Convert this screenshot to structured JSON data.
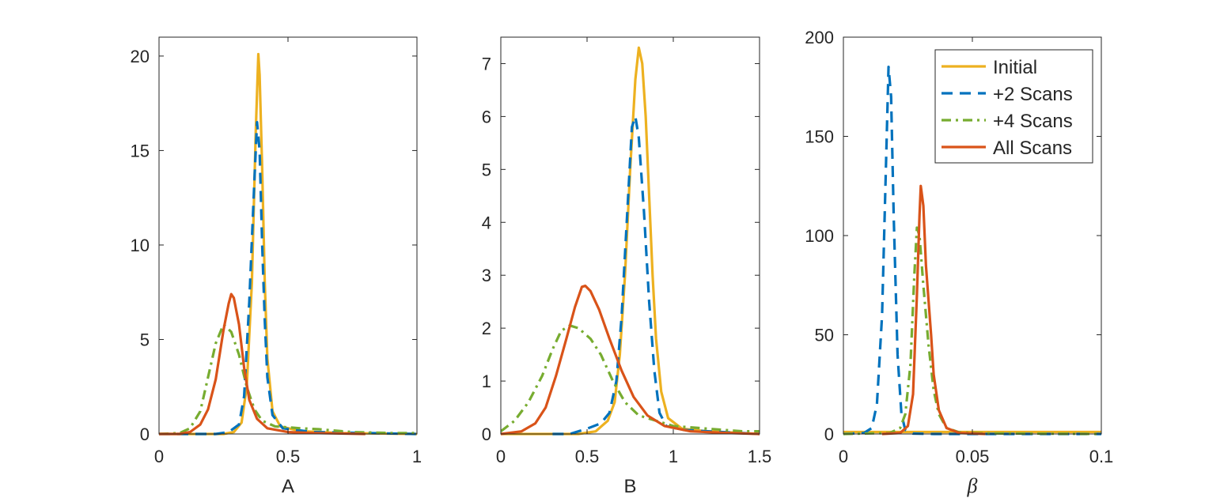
{
  "chart_data": [
    {
      "type": "line",
      "xlabel": "A",
      "ylabel": "",
      "xlim": [
        0,
        1
      ],
      "ylim": [
        0,
        21
      ],
      "xticks": [
        0,
        0.5,
        1
      ],
      "xtick_labels": [
        "0",
        "0.5",
        "1"
      ],
      "yticks": [
        0,
        5,
        10,
        15,
        20
      ],
      "ytick_labels": [
        "0",
        "5",
        "10",
        "15",
        "20"
      ],
      "grid": false,
      "series": [
        {
          "name": "Initial",
          "color": "#EDB120",
          "style": "solid",
          "points": [
            [
              0,
              0
            ],
            [
              0.25,
              0
            ],
            [
              0.29,
              0.1
            ],
            [
              0.32,
              0.6
            ],
            [
              0.34,
              2.5
            ],
            [
              0.36,
              8
            ],
            [
              0.375,
              16
            ],
            [
              0.385,
              20.1
            ],
            [
              0.39,
              19
            ],
            [
              0.4,
              14
            ],
            [
              0.41,
              8
            ],
            [
              0.42,
              4
            ],
            [
              0.44,
              1.2
            ],
            [
              0.47,
              0.4
            ],
            [
              0.55,
              0.15
            ],
            [
              0.7,
              0.05
            ],
            [
              1,
              0
            ]
          ]
        },
        {
          "name": "+2 Scans",
          "color": "#0072BD",
          "style": "dashed",
          "points": [
            [
              0,
              0
            ],
            [
              0.22,
              0
            ],
            [
              0.27,
              0.1
            ],
            [
              0.31,
              0.5
            ],
            [
              0.33,
              2
            ],
            [
              0.35,
              7
            ],
            [
              0.37,
              13.5
            ],
            [
              0.38,
              16.5
            ],
            [
              0.39,
              15
            ],
            [
              0.4,
              10
            ],
            [
              0.41,
              6
            ],
            [
              0.42,
              3
            ],
            [
              0.44,
              1
            ],
            [
              0.48,
              0.3
            ],
            [
              0.6,
              0.1
            ],
            [
              1,
              0
            ]
          ]
        },
        {
          "name": "+4 Scans",
          "color": "#77AC30",
          "style": "dashdot",
          "points": [
            [
              0,
              0
            ],
            [
              0.08,
              0.05
            ],
            [
              0.12,
              0.3
            ],
            [
              0.16,
              1.2
            ],
            [
              0.19,
              3
            ],
            [
              0.22,
              4.8
            ],
            [
              0.25,
              5.8
            ],
            [
              0.28,
              5.4
            ],
            [
              0.31,
              4.2
            ],
            [
              0.34,
              2.5
            ],
            [
              0.37,
              1.3
            ],
            [
              0.4,
              0.7
            ],
            [
              0.45,
              0.4
            ],
            [
              0.55,
              0.3
            ],
            [
              0.62,
              0.25
            ],
            [
              0.75,
              0.1
            ],
            [
              0.9,
              0.05
            ],
            [
              1,
              0.05
            ]
          ]
        },
        {
          "name": "All Scans",
          "color": "#D95319",
          "style": "solid",
          "points": [
            [
              0,
              0
            ],
            [
              0.08,
              0
            ],
            [
              0.12,
              0.1
            ],
            [
              0.16,
              0.5
            ],
            [
              0.19,
              1.3
            ],
            [
              0.22,
              2.9
            ],
            [
              0.25,
              5.5
            ],
            [
              0.27,
              6.9
            ],
            [
              0.28,
              7.4
            ],
            [
              0.29,
              7.2
            ],
            [
              0.31,
              5.8
            ],
            [
              0.33,
              3.5
            ],
            [
              0.35,
              1.8
            ],
            [
              0.38,
              0.8
            ],
            [
              0.42,
              0.3
            ],
            [
              0.5,
              0.1
            ],
            [
              0.6,
              0.05
            ],
            [
              0.8,
              0
            ]
          ]
        }
      ]
    },
    {
      "type": "line",
      "xlabel": "B",
      "ylabel": "",
      "xlim": [
        0,
        1.5
      ],
      "ylim": [
        0,
        7.5
      ],
      "xticks": [
        0,
        0.5,
        1,
        1.5
      ],
      "xtick_labels": [
        "0",
        "0.5",
        "1",
        "1.5"
      ],
      "yticks": [
        0,
        1,
        2,
        3,
        4,
        5,
        6,
        7
      ],
      "ytick_labels": [
        "0",
        "1",
        "2",
        "3",
        "4",
        "5",
        "6",
        "7"
      ],
      "grid": false,
      "series": [
        {
          "name": "Initial",
          "color": "#EDB120",
          "style": "solid",
          "points": [
            [
              0,
              0
            ],
            [
              0.45,
              0
            ],
            [
              0.55,
              0.05
            ],
            [
              0.62,
              0.25
            ],
            [
              0.66,
              0.6
            ],
            [
              0.69,
              1.5
            ],
            [
              0.72,
              3
            ],
            [
              0.75,
              5
            ],
            [
              0.78,
              6.7
            ],
            [
              0.8,
              7.3
            ],
            [
              0.82,
              7
            ],
            [
              0.84,
              6
            ],
            [
              0.86,
              4.5
            ],
            [
              0.88,
              3
            ],
            [
              0.9,
              1.8
            ],
            [
              0.93,
              0.8
            ],
            [
              0.97,
              0.3
            ],
            [
              1.05,
              0.1
            ],
            [
              1.2,
              0.05
            ],
            [
              1.5,
              0
            ]
          ]
        },
        {
          "name": "+2 Scans",
          "color": "#0072BD",
          "style": "dashed",
          "points": [
            [
              0.3,
              0
            ],
            [
              0.4,
              0
            ],
            [
              0.5,
              0.1
            ],
            [
              0.58,
              0.2
            ],
            [
              0.63,
              0.4
            ],
            [
              0.67,
              1
            ],
            [
              0.7,
              2.2
            ],
            [
              0.73,
              4
            ],
            [
              0.76,
              5.8
            ],
            [
              0.78,
              6
            ],
            [
              0.8,
              5.6
            ],
            [
              0.83,
              4.2
            ],
            [
              0.86,
              2.5
            ],
            [
              0.89,
              1.2
            ],
            [
              0.92,
              0.4
            ],
            [
              0.96,
              0.15
            ],
            [
              1.05,
              0.08
            ],
            [
              1.2,
              0.05
            ],
            [
              1.5,
              0
            ]
          ]
        },
        {
          "name": "+4 Scans",
          "color": "#77AC30",
          "style": "dashdot",
          "points": [
            [
              0,
              0.05
            ],
            [
              0.08,
              0.25
            ],
            [
              0.16,
              0.6
            ],
            [
              0.24,
              1.1
            ],
            [
              0.3,
              1.6
            ],
            [
              0.35,
              1.95
            ],
            [
              0.4,
              2.05
            ],
            [
              0.45,
              2.0
            ],
            [
              0.52,
              1.8
            ],
            [
              0.58,
              1.5
            ],
            [
              0.65,
              1.0
            ],
            [
              0.72,
              0.6
            ],
            [
              0.8,
              0.35
            ],
            [
              0.9,
              0.25
            ],
            [
              1.0,
              0.15
            ],
            [
              1.2,
              0.1
            ],
            [
              1.4,
              0.05
            ],
            [
              1.5,
              0.05
            ]
          ]
        },
        {
          "name": "All Scans",
          "color": "#D95319",
          "style": "solid",
          "points": [
            [
              0,
              0
            ],
            [
              0.12,
              0.05
            ],
            [
              0.2,
              0.2
            ],
            [
              0.26,
              0.5
            ],
            [
              0.32,
              1.1
            ],
            [
              0.38,
              1.8
            ],
            [
              0.43,
              2.4
            ],
            [
              0.47,
              2.78
            ],
            [
              0.49,
              2.8
            ],
            [
              0.52,
              2.7
            ],
            [
              0.57,
              2.35
            ],
            [
              0.63,
              1.8
            ],
            [
              0.7,
              1.2
            ],
            [
              0.77,
              0.7
            ],
            [
              0.85,
              0.35
            ],
            [
              0.95,
              0.15
            ],
            [
              1.1,
              0.05
            ],
            [
              1.3,
              0.02
            ],
            [
              1.5,
              0
            ]
          ]
        }
      ]
    },
    {
      "type": "line",
      "xlabel": "β",
      "ylabel": "",
      "xlim": [
        0,
        0.1
      ],
      "ylim": [
        0,
        200
      ],
      "xticks": [
        0,
        0.05,
        0.1
      ],
      "xtick_labels": [
        "0",
        "0.05",
        "0.1"
      ],
      "yticks": [
        0,
        50,
        100,
        150,
        200
      ],
      "ytick_labels": [
        "0",
        "50",
        "100",
        "150",
        "200"
      ],
      "grid": false,
      "legend": {
        "position": "top-right",
        "entries": [
          "Initial",
          "+2 Scans",
          "+4 Scans",
          "All Scans"
        ]
      },
      "series": [
        {
          "name": "Initial",
          "color": "#EDB120",
          "style": "solid",
          "points": [
            [
              0,
              1
            ],
            [
              0.05,
              1
            ],
            [
              0.1,
              1
            ]
          ]
        },
        {
          "name": "+2 Scans",
          "color": "#0072BD",
          "style": "dashed",
          "points": [
            [
              0,
              0
            ],
            [
              0.008,
              0.5
            ],
            [
              0.011,
              3
            ],
            [
              0.013,
              15
            ],
            [
              0.015,
              60
            ],
            [
              0.0165,
              135
            ],
            [
              0.0175,
              185
            ],
            [
              0.0185,
              170
            ],
            [
              0.0195,
              110
            ],
            [
              0.021,
              40
            ],
            [
              0.0225,
              10
            ],
            [
              0.024,
              2
            ],
            [
              0.027,
              0.2
            ],
            [
              0.035,
              0
            ],
            [
              0.1,
              0
            ]
          ]
        },
        {
          "name": "+4 Scans",
          "color": "#77AC30",
          "style": "dashdot",
          "points": [
            [
              0,
              0
            ],
            [
              0.018,
              0.5
            ],
            [
              0.022,
              3
            ],
            [
              0.024,
              10
            ],
            [
              0.026,
              35
            ],
            [
              0.0275,
              80
            ],
            [
              0.0285,
              104
            ],
            [
              0.0295,
              100
            ],
            [
              0.031,
              75
            ],
            [
              0.033,
              45
            ],
            [
              0.035,
              22
            ],
            [
              0.037,
              10
            ],
            [
              0.04,
              3
            ],
            [
              0.045,
              0.8
            ],
            [
              0.055,
              0.3
            ],
            [
              0.1,
              0
            ]
          ]
        },
        {
          "name": "All Scans",
          "color": "#D95319",
          "style": "solid",
          "points": [
            [
              0.015,
              0
            ],
            [
              0.022,
              0.5
            ],
            [
              0.025,
              4
            ],
            [
              0.027,
              20
            ],
            [
              0.0285,
              70
            ],
            [
              0.0295,
              110
            ],
            [
              0.03,
              125
            ],
            [
              0.031,
              115
            ],
            [
              0.032,
              85
            ],
            [
              0.034,
              50
            ],
            [
              0.035,
              30
            ],
            [
              0.037,
              12
            ],
            [
              0.04,
              3
            ],
            [
              0.045,
              0.5
            ],
            [
              0.055,
              0
            ]
          ]
        }
      ]
    }
  ]
}
